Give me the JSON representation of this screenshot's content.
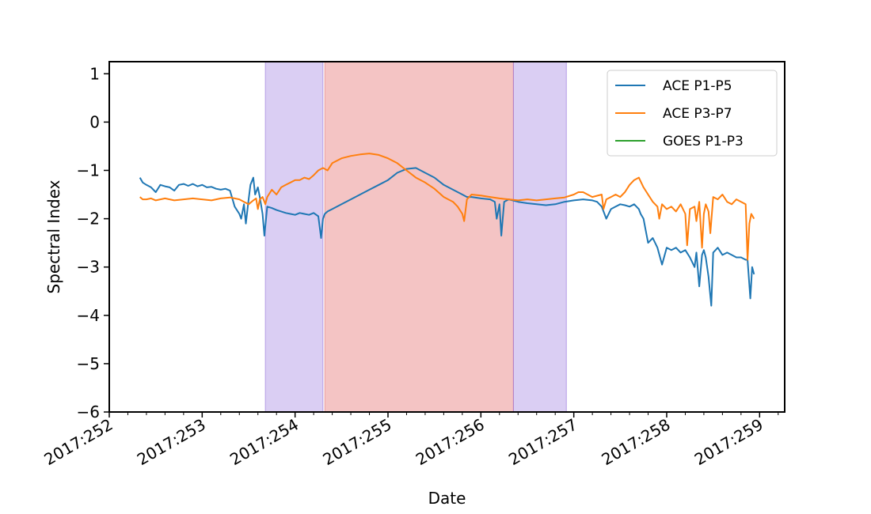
{
  "chart_data": {
    "type": "line",
    "title": "",
    "xlabel": "Date",
    "ylabel": "Spectral Index",
    "xlim": [
      252.0,
      259.27
    ],
    "ylim": [
      -6,
      1.25
    ],
    "x_ticks": [
      252,
      253,
      254,
      255,
      256,
      257,
      258,
      259
    ],
    "x_tick_labels": [
      "2017:252",
      "2017:253",
      "2017:254",
      "2017:255",
      "2017:256",
      "2017:257",
      "2017:258",
      "2017:259"
    ],
    "x_minor_ticks": [
      252.2,
      252.4,
      252.6,
      252.8,
      253.2,
      253.4,
      253.6,
      253.8,
      254.2,
      254.4,
      254.6,
      254.8,
      255.2,
      255.4,
      255.6,
      255.8,
      256.2,
      256.4,
      256.6,
      256.8,
      257.2,
      257.4,
      257.6,
      257.8,
      258.2,
      258.4,
      258.6,
      258.8,
      259.2
    ],
    "y_ticks": [
      1,
      0,
      -1,
      -2,
      -3,
      -4,
      -5,
      -6
    ],
    "y_tick_labels": [
      "1",
      "0",
      "−1",
      "−2",
      "−3",
      "−4",
      "−5",
      "−6"
    ],
    "grid": false,
    "legend_position": "top-right",
    "shaded_regions": [
      {
        "x0": 253.68,
        "x1": 254.3,
        "color": "#9370db",
        "opacity": 0.34
      },
      {
        "x0": 254.32,
        "x1": 256.35,
        "color": "#e57373",
        "opacity": 0.42
      },
      {
        "x0": 256.35,
        "x1": 256.92,
        "color": "#9370db",
        "opacity": 0.34
      }
    ],
    "series": [
      {
        "name": "ACE P1-P5",
        "color": "#1f77b4",
        "x": [
          252.33,
          252.36,
          252.4,
          252.45,
          252.5,
          252.55,
          252.6,
          252.65,
          252.7,
          252.75,
          252.8,
          252.85,
          252.9,
          252.95,
          253.0,
          253.05,
          253.1,
          253.15,
          253.2,
          253.25,
          253.3,
          253.35,
          253.4,
          253.42,
          253.45,
          253.47,
          253.5,
          253.52,
          253.55,
          253.57,
          253.6,
          253.62,
          253.65,
          253.67,
          253.7,
          253.75,
          253.8,
          253.85,
          253.9,
          253.95,
          254.0,
          254.05,
          254.1,
          254.15,
          254.2,
          254.25,
          254.28,
          254.3,
          254.32,
          254.35,
          254.4,
          254.5,
          254.6,
          254.7,
          254.8,
          254.9,
          255.0,
          255.1,
          255.2,
          255.3,
          255.4,
          255.5,
          255.6,
          255.7,
          255.8,
          255.85,
          255.9,
          256.0,
          256.1,
          256.15,
          256.17,
          256.2,
          256.22,
          256.25,
          256.3,
          256.4,
          256.5,
          256.6,
          256.7,
          256.8,
          256.9,
          257.0,
          257.1,
          257.2,
          257.25,
          257.3,
          257.35,
          257.4,
          257.45,
          257.5,
          257.55,
          257.6,
          257.65,
          257.7,
          257.72,
          257.75,
          257.77,
          257.8,
          257.85,
          257.9,
          257.95,
          258.0,
          258.05,
          258.1,
          258.15,
          258.2,
          258.25,
          258.3,
          258.32,
          258.35,
          258.38,
          258.4,
          258.42,
          258.45,
          258.48,
          258.5,
          258.55,
          258.6,
          258.65,
          258.7,
          258.75,
          258.8,
          258.85,
          258.87,
          258.9,
          258.92,
          258.94
        ],
        "values": [
          -1.15,
          -1.25,
          -1.3,
          -1.35,
          -1.45,
          -1.3,
          -1.33,
          -1.35,
          -1.42,
          -1.3,
          -1.28,
          -1.32,
          -1.28,
          -1.33,
          -1.3,
          -1.35,
          -1.34,
          -1.38,
          -1.4,
          -1.38,
          -1.42,
          -1.75,
          -1.9,
          -2.0,
          -1.7,
          -2.1,
          -1.6,
          -1.3,
          -1.15,
          -1.5,
          -1.35,
          -1.55,
          -1.9,
          -2.35,
          -1.75,
          -1.78,
          -1.82,
          -1.85,
          -1.88,
          -1.9,
          -1.92,
          -1.88,
          -1.9,
          -1.92,
          -1.88,
          -1.95,
          -2.4,
          -2.0,
          -1.9,
          -1.85,
          -1.8,
          -1.7,
          -1.6,
          -1.5,
          -1.4,
          -1.3,
          -1.2,
          -1.05,
          -0.97,
          -0.95,
          -1.05,
          -1.15,
          -1.3,
          -1.4,
          -1.5,
          -1.55,
          -1.55,
          -1.58,
          -1.6,
          -1.65,
          -2.0,
          -1.7,
          -2.35,
          -1.65,
          -1.6,
          -1.65,
          -1.68,
          -1.7,
          -1.72,
          -1.7,
          -1.65,
          -1.62,
          -1.6,
          -1.62,
          -1.65,
          -1.75,
          -2.0,
          -1.8,
          -1.75,
          -1.7,
          -1.72,
          -1.75,
          -1.7,
          -1.8,
          -1.9,
          -2.0,
          -2.2,
          -2.5,
          -2.4,
          -2.6,
          -2.95,
          -2.6,
          -2.65,
          -2.6,
          -2.7,
          -2.65,
          -2.8,
          -3.0,
          -2.7,
          -3.4,
          -2.75,
          -2.65,
          -2.8,
          -3.2,
          -3.8,
          -2.7,
          -2.6,
          -2.75,
          -2.7,
          -2.75,
          -2.8,
          -2.8,
          -2.85,
          -2.85,
          -3.65,
          -3.0,
          -3.15
        ]
      },
      {
        "name": "ACE P3-P7",
        "color": "#ff7f0e",
        "x": [
          252.33,
          252.36,
          252.4,
          252.45,
          252.5,
          252.6,
          252.7,
          252.8,
          252.9,
          253.0,
          253.1,
          253.2,
          253.3,
          253.35,
          253.4,
          253.45,
          253.5,
          253.55,
          253.58,
          253.6,
          253.62,
          253.65,
          253.68,
          253.7,
          253.75,
          253.8,
          253.85,
          253.9,
          253.95,
          254.0,
          254.05,
          254.1,
          254.15,
          254.2,
          254.25,
          254.3,
          254.35,
          254.4,
          254.5,
          254.6,
          254.7,
          254.8,
          254.9,
          255.0,
          255.1,
          255.2,
          255.3,
          255.4,
          255.5,
          255.6,
          255.7,
          255.75,
          255.8,
          255.82,
          255.85,
          255.9,
          256.0,
          256.1,
          256.2,
          256.3,
          256.4,
          256.5,
          256.6,
          256.7,
          256.8,
          256.9,
          257.0,
          257.05,
          257.1,
          257.2,
          257.3,
          257.32,
          257.35,
          257.4,
          257.45,
          257.5,
          257.55,
          257.6,
          257.65,
          257.7,
          257.75,
          257.8,
          257.85,
          257.9,
          257.92,
          257.95,
          258.0,
          258.05,
          258.1,
          258.15,
          258.2,
          258.22,
          258.25,
          258.3,
          258.32,
          258.35,
          258.38,
          258.4,
          258.42,
          258.45,
          258.47,
          258.5,
          258.55,
          258.6,
          258.65,
          258.7,
          258.75,
          258.8,
          258.85,
          258.87,
          258.89,
          258.91,
          258.94
        ],
        "values": [
          -1.55,
          -1.6,
          -1.6,
          -1.58,
          -1.62,
          -1.58,
          -1.62,
          -1.6,
          -1.58,
          -1.6,
          -1.62,
          -1.58,
          -1.56,
          -1.58,
          -1.6,
          -1.65,
          -1.7,
          -1.62,
          -1.58,
          -1.8,
          -1.6,
          -1.55,
          -1.7,
          -1.55,
          -1.4,
          -1.5,
          -1.35,
          -1.3,
          -1.25,
          -1.2,
          -1.2,
          -1.15,
          -1.18,
          -1.1,
          -1.0,
          -0.95,
          -1.0,
          -0.85,
          -0.75,
          -0.7,
          -0.67,
          -0.65,
          -0.68,
          -0.75,
          -0.85,
          -1.0,
          -1.15,
          -1.25,
          -1.38,
          -1.55,
          -1.65,
          -1.75,
          -1.9,
          -2.05,
          -1.6,
          -1.5,
          -1.52,
          -1.55,
          -1.58,
          -1.6,
          -1.62,
          -1.6,
          -1.62,
          -1.6,
          -1.58,
          -1.56,
          -1.5,
          -1.45,
          -1.45,
          -1.55,
          -1.5,
          -1.8,
          -1.6,
          -1.55,
          -1.5,
          -1.55,
          -1.45,
          -1.3,
          -1.2,
          -1.15,
          -1.35,
          -1.5,
          -1.65,
          -1.75,
          -2.0,
          -1.7,
          -1.8,
          -1.75,
          -1.85,
          -1.7,
          -1.9,
          -2.55,
          -1.8,
          -1.75,
          -2.05,
          -1.65,
          -2.6,
          -1.9,
          -1.7,
          -1.85,
          -2.3,
          -1.55,
          -1.6,
          -1.5,
          -1.65,
          -1.7,
          -1.6,
          -1.65,
          -1.7,
          -2.85,
          -2.1,
          -1.9,
          -2.0
        ]
      },
      {
        "name": "GOES P1-P3",
        "color": "#2ca02c",
        "x": [],
        "values": []
      }
    ]
  }
}
